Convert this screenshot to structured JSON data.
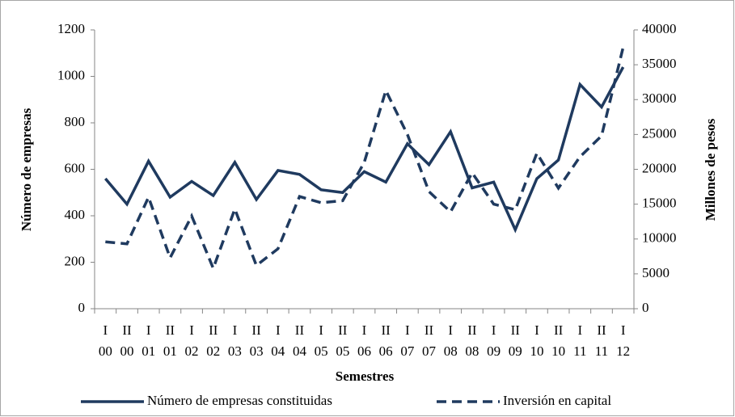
{
  "chart_data": {
    "type": "line",
    "x_label": "Semestres",
    "y_label": "Número de empresas",
    "y2_label": "Millones de pesos",
    "categories": [
      "I 00",
      "II 00",
      "I 01",
      "II 01",
      "I 02",
      "II 02",
      "I 03",
      "II 03",
      "I 04",
      "II 04",
      "I 05",
      "II 05",
      "I 06",
      "II 06",
      "I 07",
      "II 07",
      "I 08",
      "II 08",
      "I 09",
      "II 09",
      "I 10",
      "II 10",
      "I 11",
      "II 11",
      "I 12"
    ],
    "series": [
      {
        "name": "Número de empresas constituidas",
        "color": "#1f3a5f",
        "dash": "solid",
        "values": [
          560,
          450,
          635,
          480,
          548,
          487,
          630,
          470,
          595,
          578,
          512,
          500,
          590,
          545,
          710,
          620,
          762,
          520,
          545,
          340,
          560,
          640,
          965,
          868,
          1040
        ]
      },
      {
        "name": "Inversión en capital",
        "color": "#1f3a5f",
        "dash": "dashed",
        "axis": "y2",
        "values": [
          9600,
          9300,
          16000,
          7300,
          13300,
          5800,
          14300,
          6200,
          8600,
          16100,
          15200,
          15500,
          21000,
          31300,
          25000,
          16800,
          13900,
          19500,
          15000,
          14200,
          22300,
          17300,
          21800,
          24800,
          37500
        ]
      }
    ],
    "ylim": [
      0,
      1200
    ],
    "yticks": [
      0,
      200,
      400,
      600,
      800,
      1000,
      1200
    ],
    "y2lim": [
      0,
      40000
    ],
    "y2ticks": [
      0,
      5000,
      10000,
      15000,
      20000,
      25000,
      30000,
      35000,
      40000
    ],
    "grid": false,
    "legend": "bottom"
  }
}
